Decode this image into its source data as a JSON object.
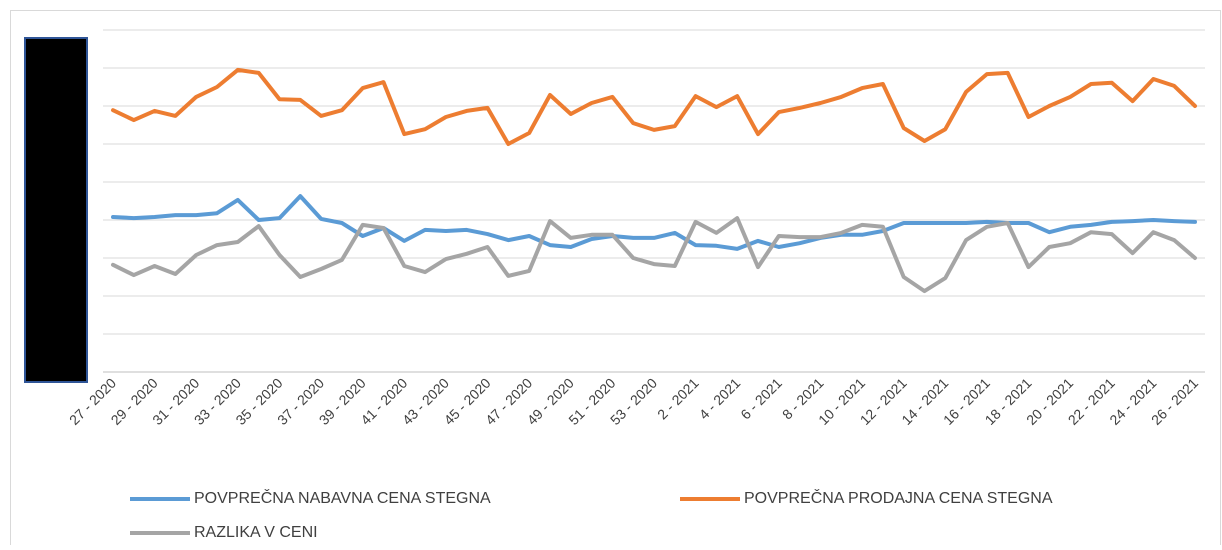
{
  "chart_data": {
    "type": "line",
    "categories": [
      "27 - 2020",
      null,
      "29 - 2020",
      null,
      "31 - 2020",
      null,
      "33 - 2020",
      null,
      "35 - 2020",
      null,
      "37 - 2020",
      null,
      "39 - 2020",
      null,
      "41 - 2020",
      null,
      "43 - 2020",
      null,
      "45 - 2020",
      null,
      "47 - 2020",
      null,
      "49 - 2020",
      null,
      "51 - 2020",
      null,
      "53 - 2020",
      null,
      "2 - 2021",
      null,
      "4 - 2021",
      null,
      "6 - 2021",
      null,
      "8 - 2021",
      null,
      "10 - 2021",
      null,
      "12 - 2021",
      null,
      "14 - 2021",
      null,
      "16 - 2021",
      null,
      "18 - 2021",
      null,
      "20 - 2021",
      null,
      "22 - 2021",
      null,
      "24 - 2021",
      null,
      "26 - 2021"
    ],
    "series": [
      {
        "name": "POVPREČNA NABAVNA CENA STEGNA",
        "color": "#5b9bd5",
        "values": [
          4.08,
          4.05,
          4.08,
          4.13,
          4.13,
          4.18,
          4.53,
          4.0,
          4.05,
          4.63,
          4.03,
          3.92,
          3.58,
          3.79,
          3.45,
          3.74,
          3.71,
          3.74,
          3.63,
          3.47,
          3.58,
          3.34,
          3.29,
          3.5,
          3.58,
          3.53,
          3.53,
          3.66,
          3.34,
          3.32,
          3.24,
          3.45,
          3.29,
          3.39,
          3.53,
          3.61,
          3.61,
          3.71,
          3.92,
          3.92,
          3.92,
          3.92,
          3.95,
          3.92,
          3.92,
          3.68,
          3.82,
          3.87,
          3.95,
          3.97,
          4.0,
          3.97,
          3.95
        ]
      },
      {
        "name": "POVPREČNA PRODAJNA CENA STEGNA",
        "color": "#ed7d31",
        "values": [
          6.89,
          6.63,
          6.87,
          6.74,
          7.24,
          7.5,
          7.95,
          7.87,
          7.18,
          7.16,
          6.74,
          6.89,
          7.47,
          7.63,
          6.26,
          6.39,
          6.71,
          6.87,
          6.95,
          6.0,
          6.29,
          7.29,
          6.79,
          7.08,
          7.24,
          6.55,
          6.37,
          6.47,
          7.26,
          6.97,
          7.26,
          6.26,
          6.84,
          6.95,
          7.08,
          7.24,
          7.47,
          7.58,
          6.42,
          6.08,
          6.39,
          7.37,
          7.84,
          7.87,
          6.71,
          7.0,
          7.24,
          7.58,
          7.61,
          7.13,
          7.71,
          7.53,
          7.0
        ]
      },
      {
        "name": "RAZLIKA V CENI",
        "color": "#a5a5a5",
        "values": [
          2.82,
          2.55,
          2.79,
          2.58,
          3.08,
          3.34,
          3.42,
          3.84,
          3.08,
          2.5,
          2.71,
          2.95,
          3.87,
          3.79,
          2.79,
          2.63,
          2.97,
          3.11,
          3.29,
          2.53,
          2.66,
          3.97,
          3.53,
          3.61,
          3.61,
          3.0,
          2.84,
          2.79,
          3.95,
          3.66,
          4.05,
          2.76,
          3.58,
          3.55,
          3.55,
          3.66,
          3.87,
          3.82,
          2.5,
          2.13,
          2.47,
          3.47,
          3.82,
          3.92,
          2.76,
          3.29,
          3.39,
          3.68,
          3.63,
          3.13,
          3.68,
          3.47,
          3.0
        ]
      }
    ],
    "ylim": [
      0,
      9
    ],
    "yticks": [
      0,
      1,
      2,
      3,
      4,
      5,
      6,
      7,
      8,
      9
    ],
    "grid": true
  }
}
